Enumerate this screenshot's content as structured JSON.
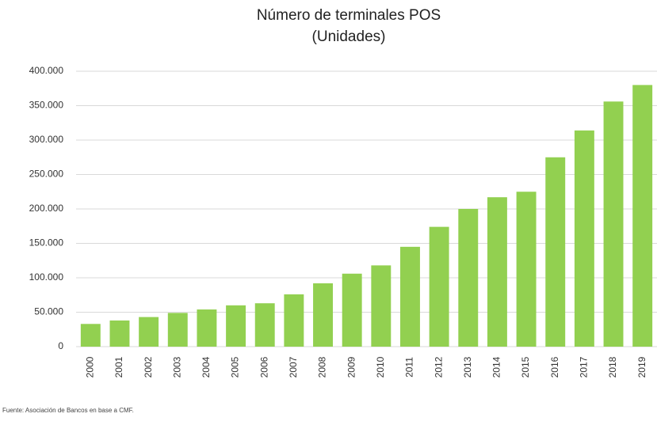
{
  "chart_data": {
    "type": "bar",
    "title": "Número de terminales POS",
    "subtitle": "(Unidades)",
    "categories": [
      "2000",
      "2001",
      "2002",
      "2003",
      "2004",
      "2005",
      "2006",
      "2007",
      "2008",
      "2009",
      "2010",
      "2011",
      "2012",
      "2013",
      "2014",
      "2015",
      "2016",
      "2017",
      "2018",
      "2019"
    ],
    "values": [
      33000,
      38000,
      43000,
      49000,
      54000,
      60000,
      63000,
      76000,
      92000,
      106000,
      118000,
      145000,
      174000,
      200000,
      217000,
      225000,
      275000,
      314000,
      356000,
      380000
    ],
    "color": "#92d050",
    "ylim": [
      0,
      400000
    ],
    "yticks": [
      0,
      {
        "value": 50000,
        "label": "50.000"
      },
      {
        "value": 100000,
        "label": "100.000"
      },
      {
        "value": 150000,
        "label": "150.000"
      },
      {
        "value": 200000,
        "label": "200.000"
      },
      {
        "value": 250000,
        "label": "250.000"
      },
      {
        "value": 300000,
        "label": "300.000"
      },
      {
        "value": 350000,
        "label": "350.000"
      },
      {
        "value": 400000,
        "label": "400.000"
      }
    ],
    "grid": true,
    "source": "Fuente: Asociación de Bancos en base a CMF."
  }
}
